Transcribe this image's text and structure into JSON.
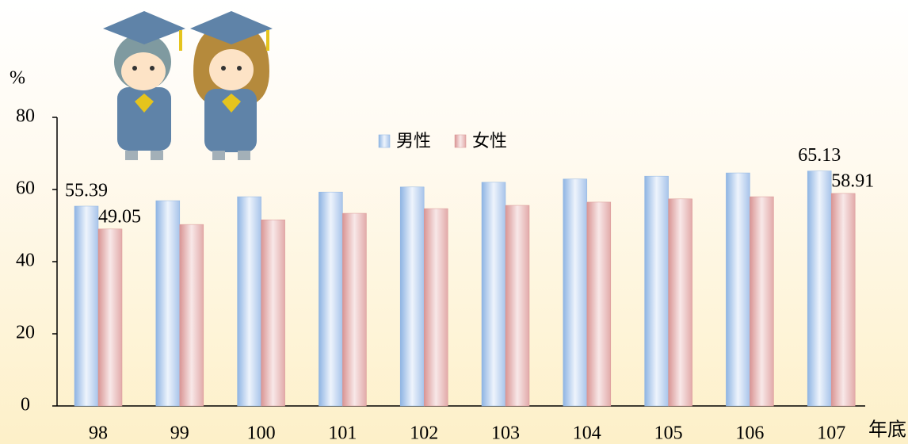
{
  "chart_data": {
    "type": "bar",
    "y_label": "%",
    "x_label": "年底",
    "categories": [
      "98",
      "99",
      "100",
      "101",
      "102",
      "103",
      "104",
      "105",
      "106",
      "107"
    ],
    "series": [
      {
        "name": "男性",
        "color": "#8eb4e3",
        "values": [
          55.39,
          56.9,
          58.0,
          59.3,
          60.7,
          62.0,
          62.9,
          63.7,
          64.6,
          65.13
        ],
        "value_labels": [
          "55.39",
          null,
          null,
          null,
          null,
          null,
          null,
          null,
          null,
          "65.13"
        ]
      },
      {
        "name": "女性",
        "color": "#d99594",
        "values": [
          49.05,
          50.3,
          51.6,
          53.4,
          54.7,
          55.6,
          56.5,
          57.4,
          58.0,
          58.91
        ],
        "value_labels": [
          "49.05",
          null,
          null,
          null,
          null,
          null,
          null,
          null,
          null,
          "58.91"
        ]
      }
    ],
    "ylim": [
      0,
      80
    ],
    "yticks": [
      0,
      20,
      40,
      60,
      80
    ],
    "grid": false
  }
}
